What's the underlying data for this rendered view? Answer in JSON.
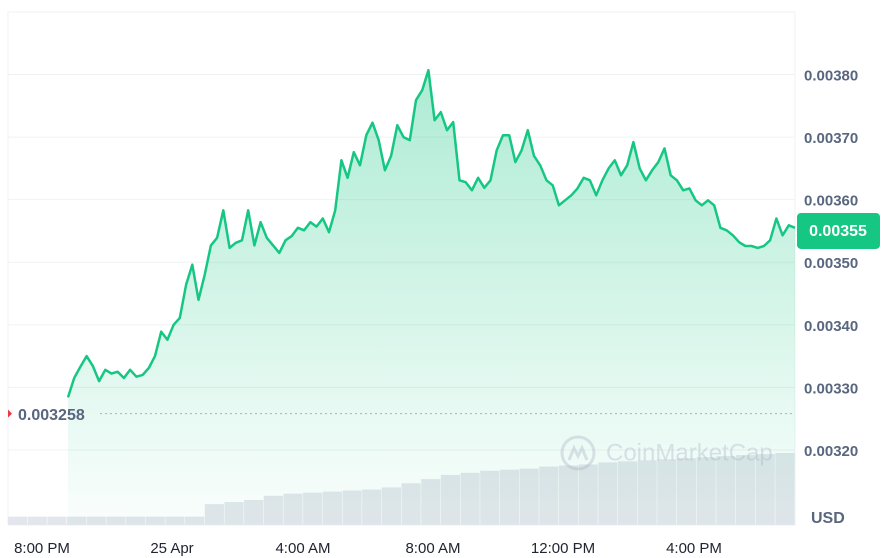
{
  "chart_data": {
    "type": "area",
    "unit": "USD",
    "watermark": "CoinMarketCap",
    "x_labels": [
      "8:00 PM",
      "25 Apr",
      "4:00 AM",
      "8:00 AM",
      "12:00 PM",
      "4:00 PM"
    ],
    "series": [
      {
        "name": "Price",
        "color": "#16c784",
        "values": [
          0.003284,
          0.003315,
          0.003333,
          0.00335,
          0.003334,
          0.00331,
          0.003328,
          0.003322,
          0.003325,
          0.003315,
          0.003328,
          0.003317,
          0.00332,
          0.003331,
          0.00335,
          0.003389,
          0.003376,
          0.0034,
          0.003411,
          0.003464,
          0.003496,
          0.00344,
          0.00348,
          0.003527,
          0.003539,
          0.003583,
          0.003523,
          0.003531,
          0.003535,
          0.003583,
          0.003527,
          0.003564,
          0.003539,
          0.003527,
          0.003515,
          0.003535,
          0.003542,
          0.003555,
          0.003551,
          0.003564,
          0.003557,
          0.00357,
          0.003548,
          0.003583,
          0.003663,
          0.003635,
          0.003676,
          0.003655,
          0.003703,
          0.003723,
          0.003695,
          0.003647,
          0.00367,
          0.003719,
          0.0037,
          0.003695,
          0.003759,
          0.003775,
          0.003807,
          0.003727,
          0.00374,
          0.003711,
          0.003724,
          0.003631,
          0.003628,
          0.003615,
          0.003635,
          0.003619,
          0.003631,
          0.003679,
          0.003703,
          0.003703,
          0.00366,
          0.003679,
          0.003711,
          0.00367,
          0.003655,
          0.003631,
          0.003623,
          0.003591,
          0.003599,
          0.003607,
          0.003618,
          0.003635,
          0.003631,
          0.003607,
          0.003631,
          0.00365,
          0.003663,
          0.003639,
          0.003655,
          0.003692,
          0.00365,
          0.003631,
          0.003647,
          0.00366,
          0.003682,
          0.003639,
          0.003631,
          0.003615,
          0.003618,
          0.003599,
          0.003591,
          0.003599,
          0.003591,
          0.003555,
          0.003551,
          0.003543,
          0.003532,
          0.003526,
          0.003526,
          0.003523,
          0.003526,
          0.003535,
          0.00357,
          0.003543,
          0.003559,
          0.003555
        ]
      }
    ],
    "volume": [
      8,
      8,
      8,
      8,
      8,
      8,
      8,
      8,
      8,
      8,
      20,
      22,
      24,
      28,
      30,
      31,
      32,
      33,
      34,
      36,
      40,
      44,
      48,
      50,
      52,
      53,
      54,
      56,
      57,
      58,
      60,
      61,
      62,
      63,
      64,
      65,
      66,
      67,
      68,
      69
    ],
    "current_price": 0.00355,
    "current_price_label": "0.00355",
    "reference_price": 0.003258,
    "ylim": [
      0.00308,
      0.0039
    ],
    "yticks": [
      {
        "value": 0.0032,
        "label": "0.00320"
      },
      {
        "value": 0.0033,
        "label": "0.00330"
      },
      {
        "value": 0.0034,
        "label": "0.00340"
      },
      {
        "value": 0.0035,
        "label": "0.00350"
      },
      {
        "value": 0.0036,
        "label": "0.00360"
      },
      {
        "value": 0.0037,
        "label": "0.00370"
      },
      {
        "value": 0.0038,
        "label": "0.00380"
      }
    ],
    "grid": true
  }
}
